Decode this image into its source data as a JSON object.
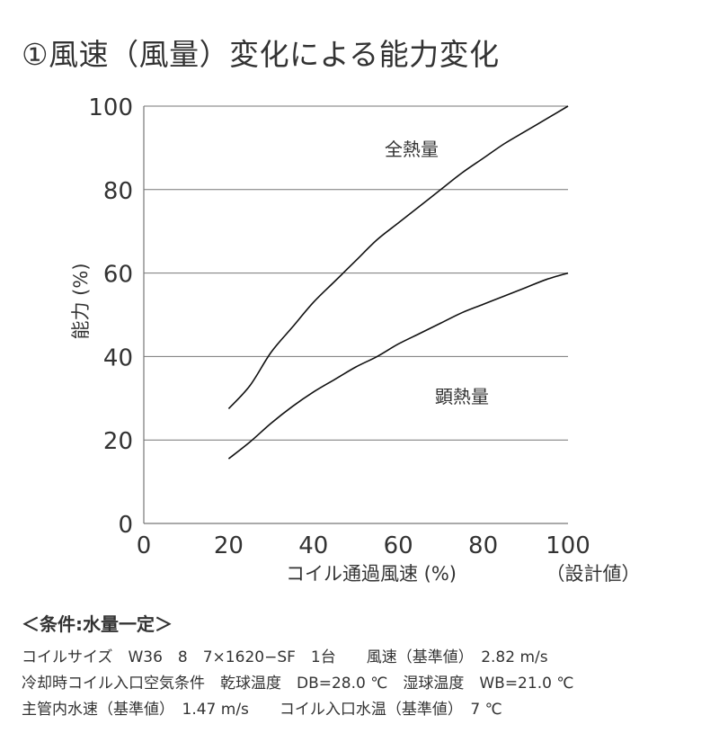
{
  "title": "①風速（風量）変化による能力変化",
  "chart_data": {
    "type": "line",
    "xlabel": "コイル通過風速 (%)",
    "xlabel_note": "（設計値）",
    "ylabel": "能力 (%)",
    "xlim": [
      0,
      100
    ],
    "ylim": [
      0,
      100
    ],
    "x_ticks": [
      "0",
      "20",
      "40",
      "60",
      "80",
      "100"
    ],
    "y_ticks": [
      "0",
      "20",
      "40",
      "60",
      "80",
      "100"
    ],
    "grid": "horizontal",
    "series": [
      {
        "name": "全熱量",
        "x": [
          20,
          25,
          30,
          35,
          40,
          45,
          50,
          55,
          60,
          65,
          70,
          75,
          80,
          85,
          90,
          95,
          100
        ],
        "values": [
          27.5,
          33,
          41,
          47,
          53,
          58,
          63,
          68,
          72,
          76,
          80,
          84,
          87.5,
          91,
          94,
          97,
          100
        ]
      },
      {
        "name": "顕熱量",
        "x": [
          20,
          25,
          30,
          35,
          40,
          45,
          50,
          55,
          60,
          65,
          70,
          75,
          80,
          85,
          90,
          95,
          100
        ],
        "values": [
          15.5,
          19.5,
          24,
          28,
          31.5,
          34.5,
          37.5,
          40,
          43,
          45.5,
          48,
          50.5,
          52.5,
          54.5,
          56.5,
          58.5,
          60
        ]
      }
    ]
  },
  "conditions": {
    "heading": "＜条件:水量一定＞",
    "lines": [
      "コイルサイズ　W36　8　7×1620−SF　1台　　風速（基準値）　2.82 m/s",
      "冷却時コイル入口空気条件　乾球温度　DB=28.0 ℃　湿球温度　WB=21.0 ℃",
      "主管内水速（基準値）　1.47 m/s　　コイル入口水温（基準値）　7 ℃"
    ]
  },
  "colors": {
    "line": "#111111",
    "grid": "#777777",
    "text": "#333333"
  }
}
